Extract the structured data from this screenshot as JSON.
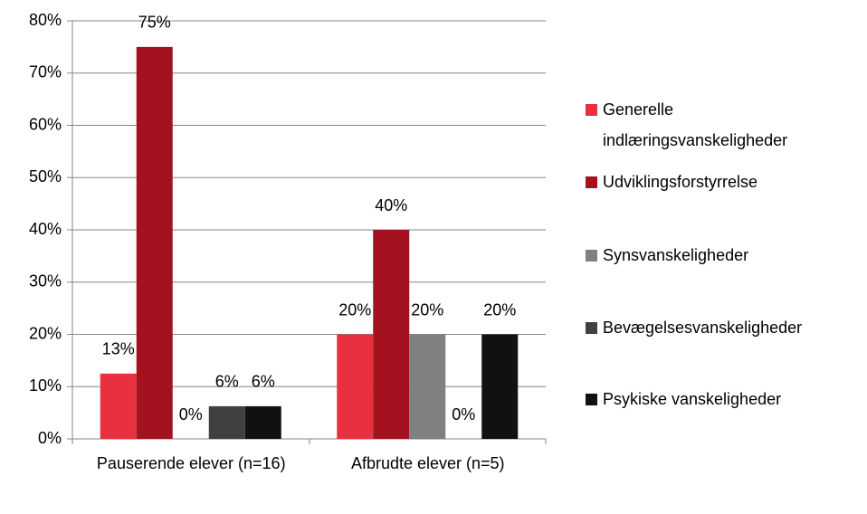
{
  "chart_data": {
    "type": "bar",
    "categories": [
      "Pauserende elever (n=16)",
      "Afbrudte elever (n=5)"
    ],
    "series": [
      {
        "name": "Generelle indlæringsvanskeligheder",
        "color": "#e8303f",
        "values": [
          12.5,
          20
        ],
        "value_labels": [
          "13%",
          "20%"
        ]
      },
      {
        "name": "Udviklingsforstyrrelse",
        "color": "#a3121e",
        "values": [
          75,
          40
        ],
        "value_labels": [
          "75%",
          "40%"
        ]
      },
      {
        "name": "Synsvanskeligheder",
        "color": "#808080",
        "values": [
          0,
          20
        ],
        "value_labels": [
          "0%",
          "20%"
        ]
      },
      {
        "name": "Bevægelsesvanskeligheder",
        "color": "#404040",
        "values": [
          6.25,
          0
        ],
        "value_labels": [
          "6%",
          "0%"
        ]
      },
      {
        "name": "Psykiske vanskeligheder",
        "color": "#111111",
        "values": [
          6.25,
          20
        ],
        "value_labels": [
          "6%",
          "20%"
        ]
      }
    ],
    "ylim": [
      0,
      80
    ],
    "yticks": [
      {
        "value": 0,
        "label": "0%"
      },
      {
        "value": 10,
        "label": "10%"
      },
      {
        "value": 20,
        "label": "20%"
      },
      {
        "value": 30,
        "label": "30%"
      },
      {
        "value": 40,
        "label": "40%"
      },
      {
        "value": 50,
        "label": "50%"
      },
      {
        "value": 60,
        "label": "60%"
      },
      {
        "value": 70,
        "label": "70%"
      },
      {
        "value": 80,
        "label": "80%"
      }
    ],
    "grid": true
  }
}
